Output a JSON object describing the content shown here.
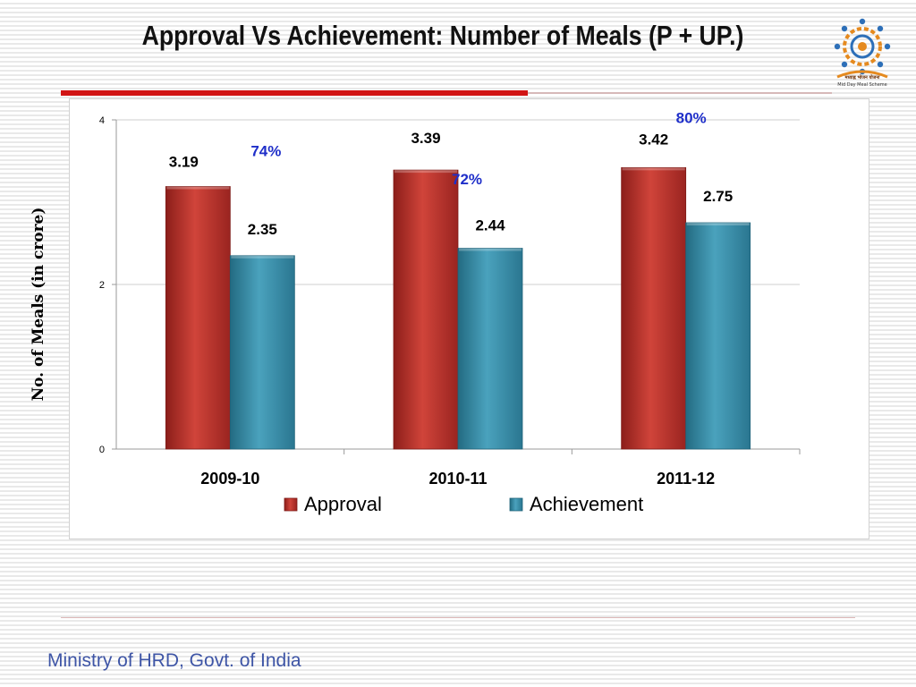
{
  "slide": {
    "title": "Approval Vs Achievement:  Number of Meals (P + UP.)",
    "footer": "Ministry of HRD, Govt. of India",
    "logo": {
      "icon": "mid-day-meal-logo",
      "caption_hindi": "मध्याह्न भोजन योजना",
      "caption_english": "Mid Day Meal Scheme"
    }
  },
  "colors": {
    "approval": "#c0392b",
    "achievement": "#3a8ea8",
    "percent_label": "#1f2fc9"
  },
  "chart_data": {
    "type": "bar",
    "title": "",
    "ylabel": "No. of Meals (in crore)",
    "xlabel": "",
    "categories": [
      "2009-10",
      "2010-11",
      "2011-12"
    ],
    "series": [
      {
        "name": "Approval",
        "values": [
          3.19,
          3.39,
          3.42
        ],
        "labels": [
          "3.19",
          "3.39",
          "3.42"
        ]
      },
      {
        "name": "Achievement",
        "values": [
          2.35,
          2.44,
          2.75
        ],
        "labels": [
          "2.35",
          "2.44",
          "2.75"
        ]
      }
    ],
    "percent_annotations": [
      "74%",
      "72%",
      "80%"
    ],
    "ylim": [
      0,
      4
    ],
    "yticks": [
      0,
      2,
      4
    ],
    "ytick_labels": [
      "0",
      "2",
      "4"
    ],
    "grid": true,
    "legend_position": "bottom"
  }
}
